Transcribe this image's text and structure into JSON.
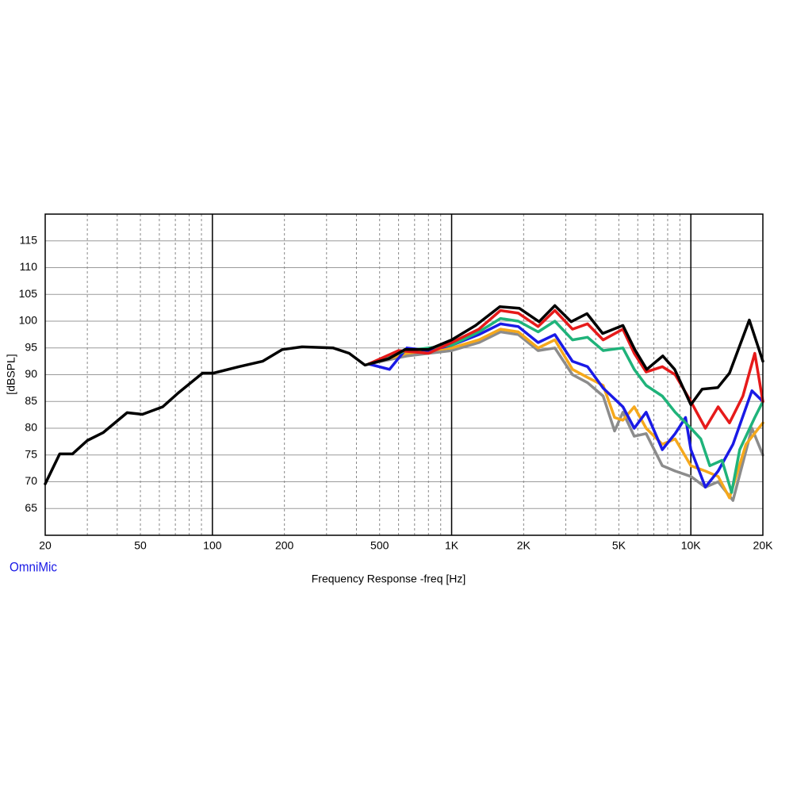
{
  "chart_data": {
    "type": "line",
    "xlabel": "Frequency Response -freq [Hz]",
    "ylabel": "[dBSPL]",
    "annotation": "OmniMic",
    "xscale": "log",
    "xlim": [
      20,
      20000
    ],
    "ylim": [
      60,
      120
    ],
    "xticks": [
      20,
      50,
      100,
      200,
      500,
      {
        "value": 1000,
        "label": "1K"
      },
      {
        "value": 2000,
        "label": "2K"
      },
      {
        "value": 5000,
        "label": "5K"
      },
      {
        "value": 10000,
        "label": "10K"
      },
      {
        "value": 20000,
        "label": "20K"
      }
    ],
    "x_minor_grid": [
      30,
      40,
      50,
      60,
      70,
      80,
      90,
      200,
      300,
      400,
      500,
      600,
      700,
      800,
      900,
      2000,
      3000,
      4000,
      5000,
      6000,
      7000,
      8000,
      9000
    ],
    "x_major_grid": [
      100,
      1000,
      10000
    ],
    "yticks": [
      65,
      70,
      75,
      80,
      85,
      90,
      95,
      100,
      105,
      110,
      115
    ],
    "grid": true,
    "series": [
      {
        "color": "#8c8c8c",
        "x": [
          450,
          650,
          1000,
          1300,
          1600,
          1900,
          2300,
          2700,
          3200,
          3700,
          4300,
          4800,
          5200,
          5800,
          6500,
          7600,
          8600,
          10000,
          11500,
          13000,
          15000,
          18000,
          20000
        ],
        "values": [
          92,
          93.5,
          94.5,
          96,
          98,
          97.5,
          94.5,
          95,
          90,
          88.5,
          86,
          79.5,
          83,
          78.5,
          79,
          73,
          72,
          71,
          69,
          70,
          66.5,
          80,
          75
        ]
      },
      {
        "color": "#f5a81c",
        "x": [
          450,
          650,
          1000,
          1300,
          1600,
          1900,
          2300,
          2700,
          3200,
          3700,
          4300,
          4800,
          5200,
          5800,
          6500,
          7600,
          8600,
          10000,
          11500,
          13000,
          14500,
          17000,
          20000
        ],
        "values": [
          92,
          94,
          95,
          96.5,
          98.5,
          98,
          95,
          96.5,
          91,
          89.5,
          88,
          82,
          81.5,
          84,
          80,
          77,
          78,
          73,
          72,
          71,
          67,
          77,
          81
        ]
      },
      {
        "color": "#1a1ae6",
        "x": [
          450,
          550,
          650,
          800,
          1000,
          1300,
          1600,
          1900,
          2300,
          2700,
          3200,
          3700,
          4300,
          5200,
          5800,
          6500,
          7600,
          8600,
          9500,
          10000,
          11500,
          13000,
          15000,
          18000,
          20000
        ],
        "values": [
          92,
          91,
          95,
          94.5,
          95.5,
          97.5,
          99.5,
          99,
          96,
          97.5,
          92.5,
          91.5,
          87.5,
          84,
          80,
          83,
          76,
          79,
          82,
          76,
          69,
          72,
          77,
          87,
          85
        ]
      },
      {
        "color": "#1fb37a",
        "x": [
          450,
          650,
          1000,
          1300,
          1600,
          1900,
          2300,
          2700,
          3200,
          3700,
          4300,
          5200,
          5800,
          6500,
          7600,
          8600,
          10000,
          11000,
          12000,
          13500,
          14800,
          16000,
          18500,
          20000
        ],
        "values": [
          92,
          94.5,
          95.5,
          98,
          100.5,
          100,
          98,
          100,
          96.5,
          97,
          94.5,
          95,
          91,
          88,
          86,
          83,
          80,
          78,
          73,
          74,
          68,
          76,
          82,
          85
        ]
      },
      {
        "color": "#e61a1a",
        "x": [
          450,
          600,
          800,
          1000,
          1300,
          1600,
          1900,
          2300,
          2700,
          3200,
          3700,
          4300,
          5200,
          5800,
          6500,
          7600,
          8600,
          10000,
          11500,
          13000,
          14500,
          16500,
          18500,
          20000
        ],
        "values": [
          92,
          94.5,
          94,
          96,
          98.5,
          102,
          101.5,
          99,
          102,
          98.5,
          99.5,
          96.5,
          98.5,
          94,
          90.5,
          91.5,
          90,
          85,
          80,
          84,
          81,
          86,
          94,
          85
        ]
      },
      {
        "color": "#000000",
        "x": [
          20,
          23,
          26,
          30,
          35,
          44,
          51,
          62,
          72,
          91,
          101,
          129,
          162,
          196,
          237,
          320,
          373,
          434,
          546,
          638,
          800,
          1000,
          1260,
          1590,
          1920,
          2320,
          2700,
          3160,
          3680,
          4280,
          5200,
          5830,
          6540,
          7630,
          8560,
          10000,
          11150,
          12960,
          14500,
          17550,
          20000
        ],
        "values": [
          69.6,
          75.2,
          75.2,
          77.7,
          79.2,
          82.9,
          82.6,
          84,
          86.6,
          90.3,
          90.3,
          91.5,
          92.5,
          94.7,
          95.2,
          95,
          94,
          91.8,
          93,
          94.7,
          94.7,
          96.5,
          99.2,
          102.7,
          102.4,
          99.9,
          102.9,
          99.9,
          101.4,
          97.7,
          99.2,
          94.7,
          91,
          93.5,
          91,
          84.4,
          87.3,
          87.6,
          90.3,
          100.2,
          92.5
        ]
      }
    ]
  }
}
